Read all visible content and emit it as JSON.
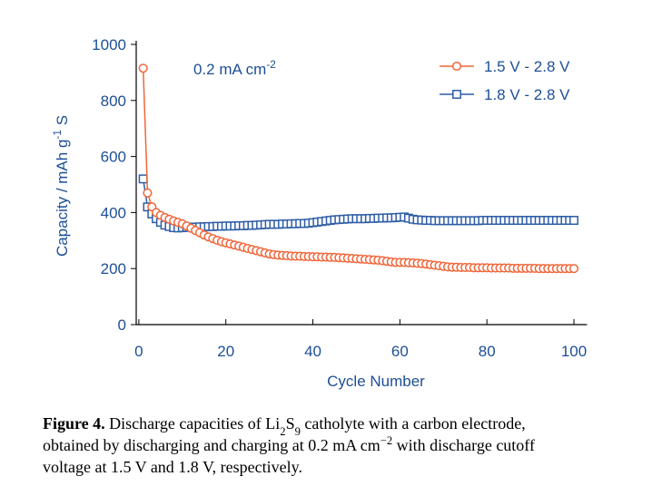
{
  "chart_data": {
    "type": "line",
    "annotation": [
      {
        "text": "0.2 mA cm"
      },
      {
        "text": "-2",
        "sup": true
      }
    ],
    "xlabel": [
      {
        "text": "Cycle Number"
      }
    ],
    "ylabel": [
      {
        "text": "Capacity / mAh g"
      },
      {
        "text": "-1",
        "sup": true
      },
      {
        "text": " S"
      }
    ],
    "x": [
      1,
      2,
      3,
      4,
      5,
      6,
      7,
      8,
      9,
      10,
      11,
      12,
      13,
      14,
      15,
      16,
      17,
      18,
      19,
      20,
      21,
      22,
      23,
      24,
      25,
      26,
      27,
      28,
      29,
      30,
      31,
      32,
      33,
      34,
      35,
      36,
      37,
      38,
      39,
      40,
      41,
      42,
      43,
      44,
      45,
      46,
      47,
      48,
      49,
      50,
      51,
      52,
      53,
      54,
      55,
      56,
      57,
      58,
      59,
      60,
      61,
      62,
      63,
      64,
      65,
      66,
      67,
      68,
      69,
      70,
      71,
      72,
      73,
      74,
      75,
      76,
      77,
      78,
      79,
      80,
      81,
      82,
      83,
      84,
      85,
      86,
      87,
      88,
      89,
      90,
      91,
      92,
      93,
      94,
      95,
      96,
      97,
      98,
      99,
      100
    ],
    "series": [
      {
        "name": "1.5 V - 2.8 V",
        "color": "#f0663a",
        "marker": "circle",
        "values": [
          915,
          470,
          420,
          400,
          390,
          382,
          376,
          370,
          365,
          360,
          352,
          344,
          336,
          328,
          320,
          313,
          307,
          301,
          296,
          292,
          288,
          284,
          280,
          276,
          272,
          268,
          264,
          260,
          256,
          252,
          250,
          248,
          247,
          246,
          245,
          244,
          244,
          243,
          243,
          242,
          242,
          241,
          241,
          240,
          240,
          239,
          238,
          237,
          236,
          235,
          234,
          233,
          232,
          231,
          230,
          228,
          226,
          224,
          222,
          222,
          222,
          221,
          220,
          219,
          218,
          216,
          214,
          212,
          210,
          208,
          206,
          205,
          205,
          204,
          204,
          204,
          203,
          203,
          203,
          203,
          202,
          202,
          202,
          202,
          202,
          201,
          201,
          201,
          201,
          201,
          201,
          200,
          200,
          200,
          200,
          200,
          200,
          200,
          200,
          200
        ]
      },
      {
        "name": "1.8 V - 2.8 V",
        "color": "#2e5da6",
        "marker": "square",
        "values": [
          520,
          420,
          395,
          378,
          365,
          355,
          350,
          346,
          345,
          346,
          347,
          348,
          348,
          349,
          349,
          350,
          350,
          351,
          351,
          352,
          352,
          352,
          353,
          353,
          354,
          354,
          355,
          356,
          357,
          358,
          358,
          358,
          359,
          359,
          360,
          360,
          361,
          361,
          362,
          364,
          366,
          368,
          370,
          372,
          374,
          375,
          376,
          377,
          378,
          378,
          378,
          378,
          379,
          379,
          380,
          380,
          381,
          381,
          382,
          383,
          384,
          380,
          376,
          374,
          373,
          372,
          372,
          371,
          371,
          371,
          371,
          371,
          371,
          371,
          371,
          371,
          371,
          371,
          372,
          372,
          372,
          372,
          372,
          372,
          372,
          372,
          372,
          372,
          372,
          372,
          372,
          372,
          372,
          372,
          372,
          372,
          372,
          372,
          372,
          372
        ]
      }
    ],
    "xlim": [
      -0.6,
      103
    ],
    "xticks": [
      0,
      20,
      40,
      60,
      80,
      100
    ],
    "ylim": [
      0,
      1000
    ],
    "yticks": [
      0,
      200,
      400,
      600,
      800,
      1000
    ],
    "legend": "top-right",
    "text_color": "#1d4f96"
  },
  "caption": {
    "lines": [
      [
        {
          "text": "Figure 4.",
          "bold": true
        },
        {
          "text": " Discharge capacities of Li"
        },
        {
          "text": "2",
          "sub": true
        },
        {
          "text": "S"
        },
        {
          "text": "9",
          "sub": true
        },
        {
          "text": " catholyte with a carbon electrode,"
        }
      ],
      [
        {
          "text": "obtained by discharging and charging at 0.2 mA cm"
        },
        {
          "text": "−2",
          "sup": true
        },
        {
          "text": " with discharge cutoff"
        }
      ],
      [
        {
          "text": "voltage at 1.5 V and 1.8 V, respectively."
        }
      ]
    ]
  }
}
